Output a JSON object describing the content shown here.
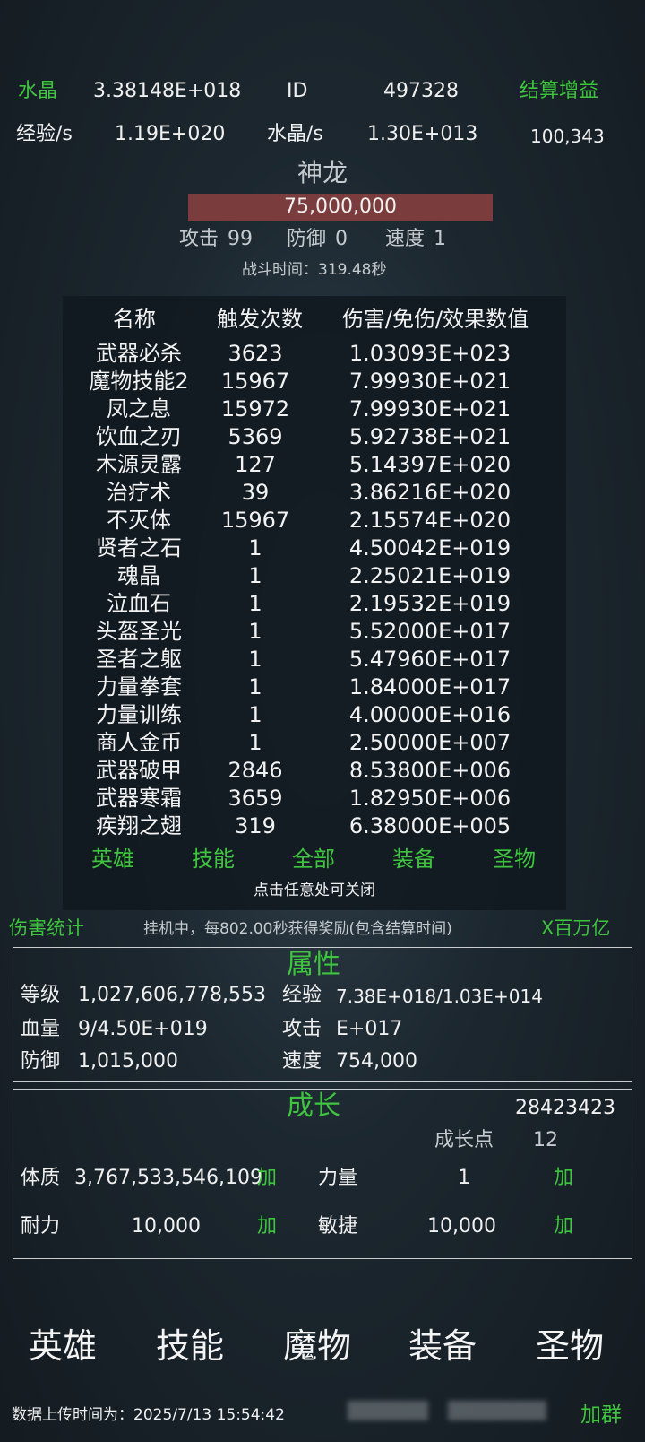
{
  "header": {
    "crystal_label": "水晶",
    "crystal_value": "3.38148E+018",
    "id_label": "ID",
    "id_value": "497328",
    "settle_button": "结算增益",
    "exp_rate_label": "经验/s",
    "exp_rate_value": "1.19E+020",
    "crystal_rate_label": "水晶/s",
    "crystal_rate_value": "1.30E+013",
    "count_value": "100,343"
  },
  "battle": {
    "monster_name": "神龙",
    "hp_value": "75,000,000",
    "attack_label": "攻击",
    "attack_value": "99",
    "defense_label": "防御",
    "defense_value": "0",
    "speed_label": "速度",
    "speed_value": "1",
    "battle_time": "战斗时间：319.48秒",
    "idle_text": "挂机中，每802.00秒获得奖励(包含结算时间)",
    "damage_stats_button": "伤害统计",
    "unit_button": "X百万亿"
  },
  "attributes": {
    "title": "属性",
    "level_label": "等级",
    "level_value": "1,027,606,778,553",
    "exp_label": "经验",
    "exp_value": "7.38E+018/1.03E+014",
    "hp_label": "血量",
    "hp_value": "9/4.50E+019",
    "atk_label": "攻击",
    "atk_value": "E+017",
    "def_label": "防御",
    "def_value": "1,015,000",
    "spd_label": "速度",
    "spd_value": "754,000"
  },
  "growth": {
    "title": "成长",
    "potential_value": "28423423",
    "growth_points_label": "成长点",
    "growth_points_value": "12",
    "con_label": "体质",
    "con_value": "3,767,533,546,109",
    "con_add": "加",
    "str_label": "力量",
    "str_value": "1",
    "str_add": "加",
    "end_label": "耐力",
    "end_value": "10,000",
    "end_add": "加",
    "agi_label": "敏捷",
    "agi_value": "10,000",
    "agi_add": "加"
  },
  "nav": [
    "英雄",
    "技能",
    "魔物",
    "装备",
    "圣物"
  ],
  "footer": {
    "upload_time": "数据上传时间为：2025/7/13 15:54:42",
    "join_group": "加群"
  },
  "damage_popup": {
    "headers": [
      "名称",
      "触发次数",
      "伤害/免伤/效果数值"
    ],
    "rows": [
      [
        "武器必杀",
        "3623",
        "1.03093E+023"
      ],
      [
        "魔物技能2",
        "15967",
        "7.99930E+021"
      ],
      [
        "凤之息",
        "15972",
        "7.99930E+021"
      ],
      [
        "饮血之刃",
        "5369",
        "5.92738E+021"
      ],
      [
        "木源灵露",
        "127",
        "5.14397E+020"
      ],
      [
        "治疗术",
        "39",
        "3.86216E+020"
      ],
      [
        "不灭体",
        "15967",
        "2.15574E+020"
      ],
      [
        "贤者之石",
        "1",
        "4.50042E+019"
      ],
      [
        "魂晶",
        "1",
        "2.25021E+019"
      ],
      [
        "泣血石",
        "1",
        "2.19532E+019"
      ],
      [
        "头盔圣光",
        "1",
        "5.52000E+017"
      ],
      [
        "圣者之躯",
        "1",
        "5.47960E+017"
      ],
      [
        "力量拳套",
        "1",
        "1.84000E+017"
      ],
      [
        "力量训练",
        "1",
        "4.00000E+016"
      ],
      [
        "商人金币",
        "1",
        "2.50000E+007"
      ],
      [
        "武器破甲",
        "2846",
        "8.53800E+006"
      ],
      [
        "武器寒霜",
        "3659",
        "1.82950E+006"
      ],
      [
        "疾翔之翅",
        "319",
        "6.38000E+005"
      ]
    ],
    "tabs": [
      "英雄",
      "技能",
      "全部",
      "装备",
      "圣物"
    ],
    "close_hint": "点击任意处可关闭"
  }
}
